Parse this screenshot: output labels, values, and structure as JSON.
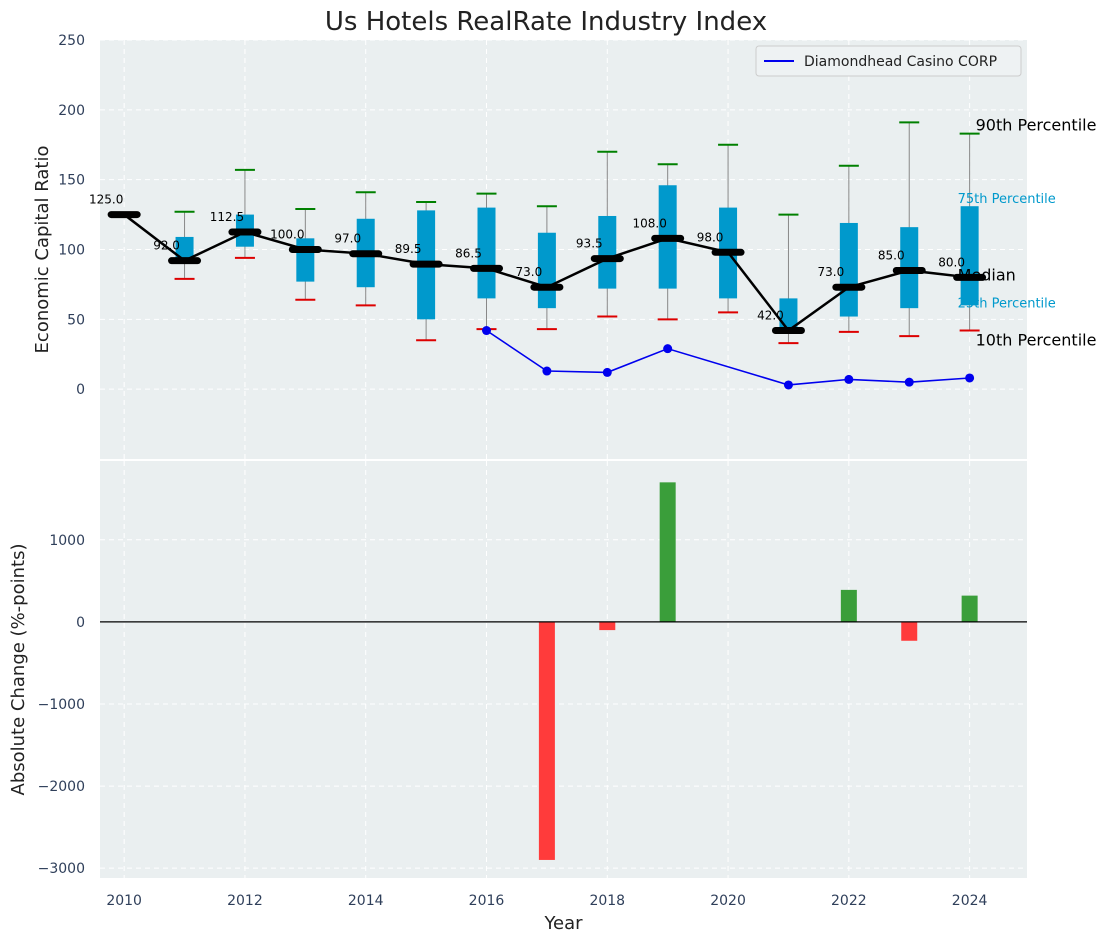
{
  "colors": {
    "plot_bg": "#eaeff0",
    "grid": "#ffffff",
    "box": "#0099cc",
    "whisker": "#888888",
    "p90_cap": "#008000",
    "p10_cap": "#dd0000",
    "median": "#000000",
    "company": "#0000ee",
    "bar_pos": "#3a9e3a",
    "bar_neg": "#ff3b3b"
  },
  "chart_data": [
    {
      "type": "box-line",
      "title": "Us Hotels RealRate Industry Index",
      "xlabel": "Year",
      "ylabel": "Economic Capital Ratio",
      "xlim": [
        2009.6,
        2024.95
      ],
      "ylim": [
        -50,
        250
      ],
      "xticks": [
        2010,
        2012,
        2014,
        2016,
        2018,
        2020,
        2022,
        2024
      ],
      "yticks": [
        0,
        50,
        100,
        150,
        200,
        250
      ],
      "grid": true,
      "years": [
        2010,
        2011,
        2012,
        2013,
        2014,
        2015,
        2016,
        2017,
        2018,
        2019,
        2020,
        2021,
        2022,
        2023,
        2024
      ],
      "p10": [
        125,
        79,
        94,
        64,
        60,
        35,
        43,
        43,
        52,
        50,
        55,
        33,
        41,
        38,
        42
      ],
      "p25": [
        125,
        90,
        102,
        77,
        73,
        50,
        65,
        58,
        72,
        72,
        65,
        40,
        52,
        58,
        60
      ],
      "median": [
        125.0,
        92.0,
        112.5,
        100.0,
        97.0,
        89.5,
        86.5,
        73.0,
        93.5,
        108.0,
        98.0,
        42.0,
        73.0,
        85.0,
        80.0
      ],
      "median_labels": [
        "125.0",
        "92.0",
        "112.5",
        "100.0",
        "97.0",
        "89.5",
        "86.5",
        "73.0",
        "93.5",
        "108.0",
        "98.0",
        "42.0",
        "73.0",
        "85.0",
        "80.0"
      ],
      "p75": [
        125,
        109,
        125,
        108,
        122,
        128,
        130,
        112,
        124,
        146,
        130,
        65,
        119,
        116,
        131
      ],
      "p90": [
        125,
        127,
        157,
        129,
        141,
        134,
        140,
        131,
        170,
        161,
        175,
        125,
        160,
        191,
        183
      ],
      "company": {
        "name": "Diamondhead Casino CORP",
        "years": [
          2016,
          2017,
          2018,
          2019,
          2021,
          2022,
          2023,
          2024
        ],
        "values": [
          42,
          13,
          12,
          29,
          3,
          7,
          5,
          8
        ]
      },
      "legend": {
        "position": "top-right",
        "entries": [
          "Diamondhead Casino CORP"
        ]
      },
      "annotations": {
        "p90": "90th Percentile",
        "p75": "75th Percentile",
        "median": "Median",
        "p25": "25th Percentile",
        "p10": "10th Percentile"
      }
    },
    {
      "type": "bar",
      "xlabel": "Year",
      "ylabel": "Absolute Change (%-points)",
      "xlim": [
        2009.6,
        2024.95
      ],
      "ylim": [
        -3120,
        1960
      ],
      "xticks": [
        2010,
        2012,
        2014,
        2016,
        2018,
        2020,
        2022,
        2024
      ],
      "yticks": [
        -3000,
        -2000,
        -1000,
        0,
        1000
      ],
      "ytick_labels": [
        "−3000",
        "−2000",
        "−1000",
        "0",
        "1000"
      ],
      "grid": true,
      "years": [
        2017,
        2018,
        2019,
        2022,
        2023,
        2024
      ],
      "values": [
        -2900,
        -100,
        1700,
        390,
        -230,
        320
      ]
    }
  ]
}
